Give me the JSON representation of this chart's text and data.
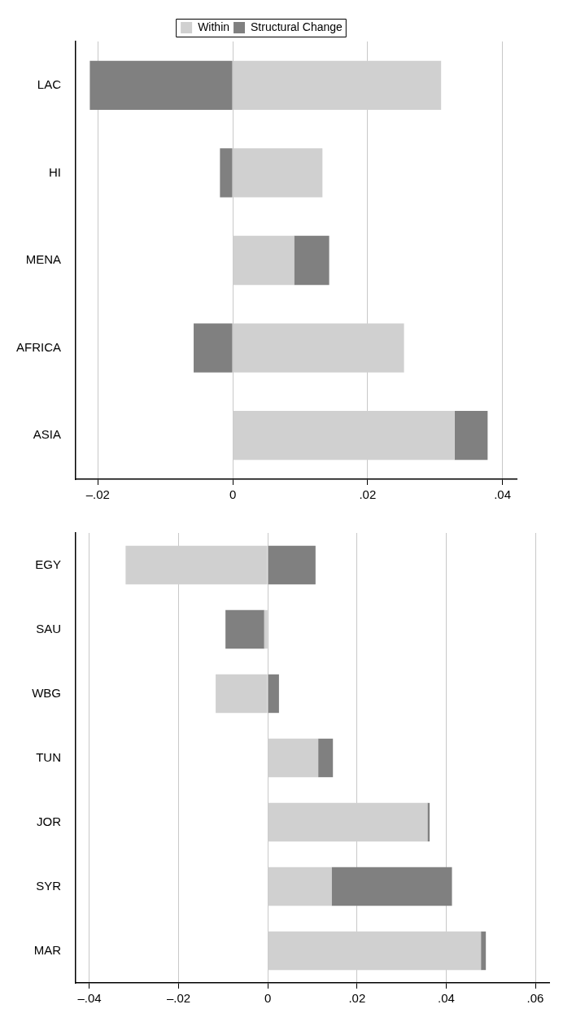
{
  "chart_data": [
    {
      "type": "bar",
      "orientation": "horizontal",
      "stacked": true,
      "legend": "top",
      "grid": "x",
      "categories": [
        "LAC",
        "HI",
        "MENA",
        "AFRICA",
        "ASIA"
      ],
      "series": [
        {
          "name": "Within",
          "color": "#d0d0d0",
          "values": [
            0.0309,
            0.0133,
            0.0091,
            0.0254,
            0.0329
          ]
        },
        {
          "name": "Structural Change",
          "color": "#808080",
          "values": [
            -0.0212,
            -0.0019,
            0.0052,
            -0.0058,
            0.0049
          ]
        }
      ],
      "xlim": [
        -0.0233,
        0.0421
      ],
      "xticks": [
        {
          "value": -0.02,
          "label": "–.02"
        },
        0,
        {
          "value": 0.02,
          "label": ".02"
        },
        {
          "value": 0.04,
          "label": ".04"
        }
      ]
    },
    {
      "type": "bar",
      "orientation": "horizontal",
      "stacked": true,
      "grid": "x",
      "categories": [
        "EGY",
        "SAU",
        "WBG",
        "TUN",
        "JOR",
        "SYR",
        "MAR"
      ],
      "series": [
        {
          "color": "#d0d0d0",
          "values": [
            -0.0319,
            -0.0008,
            -0.0117,
            0.0113,
            0.0358,
            0.0143,
            0.0478
          ]
        },
        {
          "color": "#808080",
          "values": [
            0.0107,
            -0.0087,
            0.0025,
            0.0033,
            0.0005,
            0.027,
            0.0011
          ]
        }
      ],
      "xlim": [
        -0.0431,
        0.0631
      ],
      "xticks": [
        {
          "value": -0.04,
          "label": "–.04"
        },
        {
          "value": -0.02,
          "label": "–.02"
        },
        0,
        {
          "value": 0.02,
          "label": ".02"
        },
        {
          "value": 0.04,
          "label": ".04"
        },
        {
          "value": 0.06,
          "label": ".06"
        }
      ]
    }
  ]
}
